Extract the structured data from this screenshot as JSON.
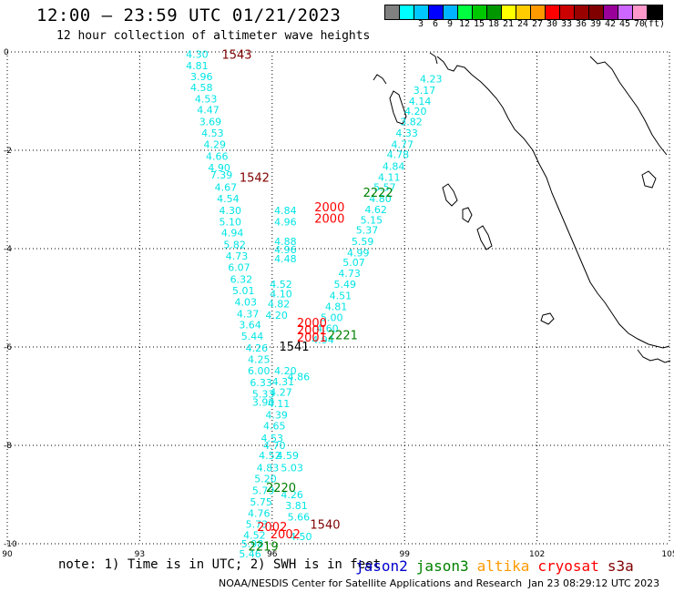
{
  "title": "12:00 – 23:59 UTC 01/21/2023",
  "subtitle": "12 hour collection of altimeter wave heights",
  "colorbar": {
    "colors": [
      "#808080",
      "#00ffff",
      "#00c8ff",
      "#0000ff",
      "#00b4ff",
      "#00ff40",
      "#00c800",
      "#009600",
      "#ffff00",
      "#ffcc00",
      "#ff9900",
      "#ff0000",
      "#cc0000",
      "#990000",
      "#800000",
      "#990099",
      "#cc66ff",
      "#ff99cc",
      "#000000"
    ],
    "labels": [
      "3",
      "6",
      "9",
      "12",
      "15",
      "18",
      "21",
      "24",
      "27",
      "30",
      "33",
      "36",
      "39",
      "42",
      "45",
      "70",
      "(ft)"
    ]
  },
  "axes": {
    "x_ticks": [
      "90",
      "93",
      "96",
      "99",
      "102",
      "105"
    ],
    "y_ticks": [
      "0",
      "-2",
      "-4",
      "-6",
      "-8",
      "-10"
    ]
  },
  "satellite_times": [
    {
      "text": "1543",
      "lon": 95.2,
      "lat": -0.05,
      "color": "#800000"
    },
    {
      "text": "1542",
      "lon": 95.6,
      "lat": -2.55,
      "color": "#800000"
    },
    {
      "text": "2222",
      "lon": 98.4,
      "lat": -2.85,
      "color": "#008000"
    },
    {
      "text": "2000",
      "lon": 97.3,
      "lat": -3.15,
      "color": "#ff0000"
    },
    {
      "text": "2000",
      "lon": 97.3,
      "lat": -3.38,
      "color": "#ff0000"
    },
    {
      "text": "2000",
      "lon": 96.9,
      "lat": -5.5,
      "color": "#ff0000"
    },
    {
      "text": "2001",
      "lon": 96.9,
      "lat": -5.65,
      "color": "#ff0000"
    },
    {
      "text": "2001",
      "lon": 96.9,
      "lat": -5.8,
      "color": "#ff0000"
    },
    {
      "text": "2221",
      "lon": 97.6,
      "lat": -5.75,
      "color": "#008000"
    },
    {
      "text": "1541",
      "lon": 96.5,
      "lat": -5.98,
      "color": "#000000"
    },
    {
      "text": "2220",
      "lon": 96.2,
      "lat": -8.85,
      "color": "#008000"
    },
    {
      "text": "1540",
      "lon": 97.2,
      "lat": -9.6,
      "color": "#800000"
    },
    {
      "text": "2002",
      "lon": 96.0,
      "lat": -9.65,
      "color": "#ff0000"
    },
    {
      "text": "2002",
      "lon": 96.3,
      "lat": -9.8,
      "color": "#ff0000"
    },
    {
      "text": "2219",
      "lon": 95.8,
      "lat": -10.05,
      "color": "#008000"
    }
  ],
  "swh": [
    {
      "text": "4.30",
      "lon": 94.3,
      "lat": -0.05
    },
    {
      "text": "4.81",
      "lon": 94.3,
      "lat": -0.28
    },
    {
      "text": "3.96",
      "lon": 94.4,
      "lat": -0.5
    },
    {
      "text": "4.58",
      "lon": 94.4,
      "lat": -0.72
    },
    {
      "text": "4.53",
      "lon": 94.5,
      "lat": -0.95
    },
    {
      "text": "4.47",
      "lon": 94.55,
      "lat": -1.18
    },
    {
      "text": "3.69",
      "lon": 94.6,
      "lat": -1.42
    },
    {
      "text": "4.53",
      "lon": 94.65,
      "lat": -1.65
    },
    {
      "text": "4.29",
      "lon": 94.7,
      "lat": -1.88
    },
    {
      "text": "4.66",
      "lon": 94.75,
      "lat": -2.12
    },
    {
      "text": "4.90",
      "lon": 94.8,
      "lat": -2.35
    },
    {
      "text": "7.39",
      "lon": 94.85,
      "lat": -2.5
    },
    {
      "text": "4.67",
      "lon": 94.95,
      "lat": -2.75
    },
    {
      "text": "4.54",
      "lon": 95.0,
      "lat": -2.98
    },
    {
      "text": "4.30",
      "lon": 95.05,
      "lat": -3.22
    },
    {
      "text": "5.10",
      "lon": 95.05,
      "lat": -3.45
    },
    {
      "text": "4.94",
      "lon": 95.1,
      "lat": -3.68
    },
    {
      "text": "5.82",
      "lon": 95.15,
      "lat": -3.92
    },
    {
      "text": "4.73",
      "lon": 95.2,
      "lat": -4.15
    },
    {
      "text": "6.07",
      "lon": 95.25,
      "lat": -4.38
    },
    {
      "text": "6.32",
      "lon": 95.3,
      "lat": -4.62
    },
    {
      "text": "5.01",
      "lon": 95.35,
      "lat": -4.85
    },
    {
      "text": "4.03",
      "lon": 95.4,
      "lat": -5.08
    },
    {
      "text": "4.37",
      "lon": 95.45,
      "lat": -5.32
    },
    {
      "text": "3.64",
      "lon": 95.5,
      "lat": -5.55
    },
    {
      "text": "5.44",
      "lon": 95.55,
      "lat": -5.78
    },
    {
      "text": "4.26",
      "lon": 95.65,
      "lat": -6.02
    },
    {
      "text": "4.25",
      "lon": 95.7,
      "lat": -6.25
    },
    {
      "text": "6.00",
      "lon": 95.7,
      "lat": -6.48
    },
    {
      "text": "6.33",
      "lon": 95.75,
      "lat": -6.72
    },
    {
      "text": "5.33",
      "lon": 95.8,
      "lat": -6.95
    },
    {
      "text": "3.90",
      "lon": 95.8,
      "lat": -7.12
    },
    {
      "text": "4.52",
      "lon": 95.95,
      "lat": -8.2
    },
    {
      "text": "4.83",
      "lon": 95.9,
      "lat": -8.45
    },
    {
      "text": "5.20",
      "lon": 95.85,
      "lat": -8.68
    },
    {
      "text": "5.79",
      "lon": 95.8,
      "lat": -8.92
    },
    {
      "text": "5.75",
      "lon": 95.75,
      "lat": -9.15
    },
    {
      "text": "4.76",
      "lon": 95.7,
      "lat": -9.38
    },
    {
      "text": "5.73",
      "lon": 95.65,
      "lat": -9.6
    },
    {
      "text": "4.52",
      "lon": 95.6,
      "lat": -9.82
    },
    {
      "text": "5.98",
      "lon": 95.55,
      "lat": -10.0
    },
    {
      "text": "5.46",
      "lon": 95.5,
      "lat": -10.2
    },
    {
      "text": "4.84",
      "lon": 96.3,
      "lat": -3.22
    },
    {
      "text": "4.96",
      "lon": 96.3,
      "lat": -3.45
    },
    {
      "text": "4.88",
      "lon": 96.3,
      "lat": -3.85
    },
    {
      "text": "4.96",
      "lon": 96.3,
      "lat": -4.02
    },
    {
      "text": "4.48",
      "lon": 96.3,
      "lat": -4.2
    },
    {
      "text": "4.52",
      "lon": 96.2,
      "lat": -4.72
    },
    {
      "text": "4.10",
      "lon": 96.2,
      "lat": -4.92
    },
    {
      "text": "4.82",
      "lon": 96.15,
      "lat": -5.12
    },
    {
      "text": "4.20",
      "lon": 96.1,
      "lat": -5.35
    },
    {
      "text": "4.20",
      "lon": 96.3,
      "lat": -6.48
    },
    {
      "text": "4.31",
      "lon": 96.25,
      "lat": -6.7
    },
    {
      "text": "4.27",
      "lon": 96.2,
      "lat": -6.92
    },
    {
      "text": "4.11",
      "lon": 96.15,
      "lat": -7.15
    },
    {
      "text": "4.39",
      "lon": 96.1,
      "lat": -7.38
    },
    {
      "text": "4.65",
      "lon": 96.05,
      "lat": -7.6
    },
    {
      "text": "4.53",
      "lon": 96.0,
      "lat": -7.85
    },
    {
      "text": "4.70",
      "lon": 96.05,
      "lat": -8.0
    },
    {
      "text": "4.59",
      "lon": 96.35,
      "lat": -8.2
    },
    {
      "text": "5.03",
      "lon": 96.45,
      "lat": -8.45
    },
    {
      "text": "4.26",
      "lon": 96.45,
      "lat": -9.0
    },
    {
      "text": "3.81",
      "lon": 96.55,
      "lat": -9.22
    },
    {
      "text": "5.66",
      "lon": 96.6,
      "lat": -9.45
    },
    {
      "text": "4.50",
      "lon": 96.65,
      "lat": -9.85
    },
    {
      "text": "4.23",
      "lon": 99.6,
      "lat": -0.55
    },
    {
      "text": "3.17",
      "lon": 99.45,
      "lat": -0.78
    },
    {
      "text": "4.14",
      "lon": 99.35,
      "lat": -1.0
    },
    {
      "text": "4.20",
      "lon": 99.25,
      "lat": -1.2
    },
    {
      "text": "3.82",
      "lon": 99.15,
      "lat": -1.42
    },
    {
      "text": "4.33",
      "lon": 99.05,
      "lat": -1.65
    },
    {
      "text": "4.77",
      "lon": 98.95,
      "lat": -1.88
    },
    {
      "text": "4.78",
      "lon": 98.85,
      "lat": -2.08
    },
    {
      "text": "4.84",
      "lon": 98.75,
      "lat": -2.32
    },
    {
      "text": "4.11",
      "lon": 98.65,
      "lat": -2.55
    },
    {
      "text": "5.57",
      "lon": 98.55,
      "lat": -2.75
    },
    {
      "text": "4.80",
      "lon": 98.45,
      "lat": -2.98
    },
    {
      "text": "4.62",
      "lon": 98.35,
      "lat": -3.2
    },
    {
      "text": "5.15",
      "lon": 98.25,
      "lat": -3.42
    },
    {
      "text": "5.37",
      "lon": 98.15,
      "lat": -3.62
    },
    {
      "text": "5.59",
      "lon": 98.05,
      "lat": -3.85
    },
    {
      "text": "4.99",
      "lon": 97.95,
      "lat": -4.08
    },
    {
      "text": "5.07",
      "lon": 97.85,
      "lat": -4.28
    },
    {
      "text": "4.73",
      "lon": 97.75,
      "lat": -4.5
    },
    {
      "text": "5.49",
      "lon": 97.65,
      "lat": -4.72
    },
    {
      "text": "4.51",
      "lon": 97.55,
      "lat": -4.95
    },
    {
      "text": "4.81",
      "lon": 97.45,
      "lat": -5.18
    },
    {
      "text": "5.00",
      "lon": 97.35,
      "lat": -5.4
    },
    {
      "text": "4.60",
      "lon": 97.25,
      "lat": -5.62
    },
    {
      "text": "4.94",
      "lon": 97.15,
      "lat": -5.85
    },
    {
      "text": "4.86",
      "lon": 96.6,
      "lat": -6.6
    }
  ],
  "legend": {
    "note": "note: 1) Time is in UTC; 2) SWH is in feet",
    "satellites": [
      {
        "name": "jason2",
        "color": "#0000cc"
      },
      {
        "name": "jason3",
        "color": "#008000"
      },
      {
        "name": "altika",
        "color": "#ff9900"
      },
      {
        "name": "cryosat",
        "color": "#ff0000"
      },
      {
        "name": "s3a",
        "color": "#800000"
      }
    ]
  },
  "credit": "NOAA/NESDIS Center for Satellite Applications and Research",
  "timestamp": "Jan 23 08:29:12 UTC 2023",
  "colors": {
    "swh_text": "#00e5e5",
    "grid": "#000000"
  }
}
